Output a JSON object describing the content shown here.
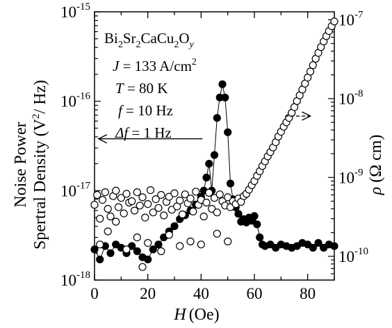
{
  "chart_data": {
    "type": "scatter",
    "x_axis": {
      "label_var": "H",
      "label_unit": "(Oe)",
      "range": [
        0,
        90
      ],
      "ticks": [
        {
          "value": 0,
          "label": "0"
        },
        {
          "value": 20,
          "label": "20"
        },
        {
          "value": 40,
          "label": "40"
        },
        {
          "value": 60,
          "label": "60"
        },
        {
          "value": 80,
          "label": "80"
        }
      ]
    },
    "y_left": {
      "label_line1": "Noise Power",
      "label_line2_pre": "Spertral Density (V",
      "label_line2_sup": "2",
      "label_line2_post": "/ Hz)",
      "scale": "log",
      "range": [
        1e-18,
        1e-15
      ],
      "ticks": [
        {
          "value": 1e-18,
          "base": "10",
          "exp": "-18"
        },
        {
          "value": 1e-17,
          "base": "10",
          "exp": "-17"
        },
        {
          "value": 1e-16,
          "base": "10",
          "exp": "-16"
        },
        {
          "value": 1e-15,
          "base": "10",
          "exp": "-15"
        }
      ]
    },
    "y_right": {
      "label_rho": "ρ",
      "label_unit": "(Ω cm)",
      "scale": "log",
      "range": [
        5e-11,
        1.26e-07
      ],
      "ticks": [
        {
          "value": 1e-10,
          "base": "10",
          "exp": "-10"
        },
        {
          "value": 1e-09,
          "base": "10",
          "exp": "-9"
        },
        {
          "value": 1e-08,
          "base": "10",
          "exp": "-8"
        },
        {
          "value": 1e-07,
          "base": "10",
          "exp": "-7"
        }
      ]
    },
    "annotations": {
      "compound": [
        "Bi",
        "2",
        "Sr",
        "2",
        "CaCu",
        "2",
        "O",
        "y"
      ],
      "J_var": "J",
      "J_text": " = 133 A/cm",
      "J_sup": "2",
      "T_var": "T",
      "T_text": " = 80 K",
      "f_var": "f",
      "f_text": " = 10 Hz",
      "df_var": "Δf",
      "df_text": " = 1 Hz"
    },
    "series": [
      {
        "marker": "filled-circle",
        "connected": true,
        "axis": "left",
        "x": [
          0,
          2,
          4,
          6,
          8,
          10,
          12,
          14,
          16,
          18,
          20,
          22,
          24,
          26,
          28,
          30,
          32,
          34,
          36,
          38,
          40,
          41,
          42,
          43,
          44,
          45,
          46,
          47,
          48,
          49,
          50,
          51,
          52,
          53,
          54,
          55,
          56,
          57,
          58,
          59,
          60,
          61,
          62,
          63,
          64,
          66,
          68,
          70,
          72,
          74,
          76,
          78,
          80,
          82,
          84,
          86,
          88,
          90
        ],
        "y": [
          2.2e-18,
          1.7e-18,
          2.4e-18,
          2e-18,
          2.5e-18,
          2.3e-18,
          2e-18,
          2.4e-18,
          2.1e-18,
          1.8e-18,
          1.7e-18,
          2.2e-18,
          2.5e-18,
          3e-18,
          3.5e-18,
          4e-18,
          4.8e-18,
          5.3e-18,
          6e-18,
          7e-18,
          8.5e-18,
          1e-17,
          1.4e-17,
          2e-17,
          1e-17,
          2.5e-17,
          6.5e-17,
          1.1e-16,
          1.55e-16,
          1.1e-16,
          4.5e-17,
          1.2e-17,
          8e-18,
          6.5e-18,
          5.5e-18,
          4.5e-18,
          4.8e-18,
          4.4e-18,
          5e-18,
          4.6e-18,
          5.2e-18,
          4.2e-18,
          3e-18,
          2.5e-18,
          2.4e-18,
          2.5e-18,
          2.3e-18,
          2.5e-18,
          2.4e-18,
          2.3e-18,
          2.4e-18,
          2.6e-18,
          2.5e-18,
          2.3e-18,
          2.6e-18,
          2.3e-18,
          2.5e-18,
          2.4e-18
        ]
      },
      {
        "marker": "open-circle",
        "connected": false,
        "axis": "right",
        "x": [
          0,
          1,
          2,
          3,
          4,
          5,
          6,
          7,
          8,
          9,
          10,
          11,
          12,
          13,
          14,
          15,
          16,
          17,
          18,
          19,
          20,
          21,
          22,
          23,
          24,
          25,
          26,
          27,
          28,
          29,
          30,
          31,
          32,
          33,
          34,
          35,
          36,
          37,
          38,
          39,
          40,
          41,
          42,
          43,
          44,
          45,
          46,
          47,
          48,
          49,
          50,
          51,
          52,
          53,
          54,
          55,
          56,
          57,
          58,
          59,
          60,
          61,
          62,
          63,
          64,
          65,
          66,
          67,
          68,
          69,
          70,
          71,
          72,
          73,
          74,
          75,
          76,
          77,
          78,
          79,
          80,
          81,
          82,
          83,
          84,
          85,
          86,
          87,
          88,
          89,
          90
        ],
        "y": [
          4.5e-10,
          6e-10,
          3e-10,
          5.2e-10,
          6.5e-10,
          4e-10,
          3.2e-10,
          5.8e-10,
          6.8e-10,
          4.2e-10,
          5.5e-10,
          3.5e-10,
          6.2e-10,
          4.8e-10,
          5e-10,
          3.8e-10,
          6.5e-10,
          4.4e-10,
          5.6e-10,
          3.1e-10,
          4.6e-10,
          6.9e-10,
          3.6e-10,
          5.3e-10,
          4.1e-10,
          6e-10,
          3.3e-10,
          4.9e-10,
          5.7e-10,
          3.9e-10,
          6.3e-10,
          4.3e-10,
          5.1e-10,
          3.4e-10,
          6.1e-10,
          4.7e-10,
          5.4e-10,
          3.7e-10,
          6.6e-10,
          4.5e-10,
          5.2e-10,
          3.2e-10,
          4.8e-10,
          6.4e-10,
          4e-10,
          5.5e-10,
          3.6e-10,
          6.1e-10,
          5e-10,
          4.4e-10,
          5.6e-10,
          4.2e-10,
          5e-10,
          4.6e-10,
          5.4e-10,
          4.9e-10,
          5.8e-10,
          6.2e-10,
          7e-10,
          8e-10,
          9e-10,
          1.05e-09,
          1.2e-09,
          1.4e-09,
          1.6e-09,
          1.85e-09,
          2.1e-09,
          2.4e-09,
          2.8e-09,
          3.3e-09,
          3.8e-09,
          4.4e-09,
          5e-09,
          5.7e-09,
          6.6e-09,
          7.8e-09,
          9.3e-09,
          1.1e-08,
          1.3e-08,
          1.55e-08,
          1.85e-08,
          2.2e-08,
          2.65e-08,
          3.2e-08,
          3.8e-08,
          4.5e-08,
          5.3e-08,
          6.2e-08,
          7.2e-08,
          8.3e-08,
          9.5e-08
        ]
      },
      {
        "marker": "open-circle",
        "connected": false,
        "axis": "left",
        "x": [
          2,
          5,
          8,
          12,
          16,
          18,
          20,
          25,
          28,
          32,
          36,
          40,
          46,
          50
        ],
        "y": [
          2.5e-18,
          3.5e-18,
          4.5e-18,
          2.2e-18,
          3e-18,
          1.4e-18,
          2.6e-18,
          2.1e-18,
          3.2e-18,
          2.4e-18,
          2.7e-18,
          2.5e-18,
          3.3e-18,
          2.7e-18
        ]
      }
    ],
    "arrows": [
      {
        "direction": "left",
        "style": "solid",
        "from_x": 40.5,
        "to_x": 1.5,
        "y": 3.8e-17,
        "axis": "left"
      },
      {
        "direction": "right",
        "style": "dashed",
        "from_x": 71.5,
        "to_x": 81,
        "y": 6e-09,
        "axis": "right"
      }
    ]
  }
}
